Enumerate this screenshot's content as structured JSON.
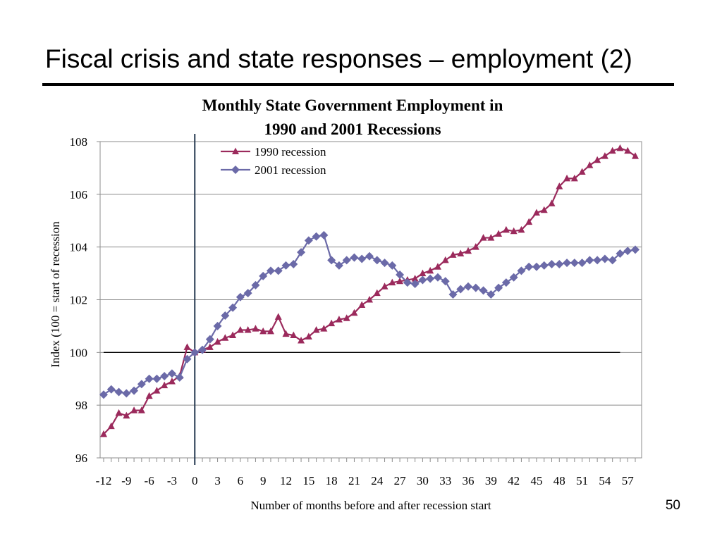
{
  "slide": {
    "title": "Fiscal crisis and state responses – employment (2)",
    "number": "50"
  },
  "chart_data": {
    "type": "line",
    "title": "Monthly State Government Employment in 1990 and 2001 Recessions",
    "title_lines": [
      "Monthly State Government Employment in",
      "1990 and 2001 Recessions"
    ],
    "xlabel": "Number of months before and after recession start",
    "ylabel": "Index (100 = start of recession",
    "xlim": [
      -12,
      58
    ],
    "ylim": [
      96,
      108
    ],
    "y_ticks": [
      96,
      98,
      100,
      102,
      104,
      106,
      108
    ],
    "x_ticks": [
      -12,
      -9,
      -6,
      -3,
      0,
      3,
      6,
      9,
      12,
      15,
      18,
      21,
      24,
      27,
      30,
      33,
      36,
      39,
      42,
      45,
      48,
      51,
      54,
      57
    ],
    "grid": "horizontal",
    "legend_position": "top-left",
    "reference_lines": {
      "vertical_x": 0,
      "horizontal_y": 100
    },
    "series": [
      {
        "name": "1990 recession",
        "color": "#9b2a5c",
        "marker": "triangle",
        "x_start": -12,
        "values": [
          96.9,
          97.2,
          97.7,
          97.6,
          97.8,
          97.8,
          98.35,
          98.55,
          98.75,
          98.9,
          99.1,
          100.2,
          100.0,
          100.1,
          100.2,
          100.4,
          100.55,
          100.65,
          100.85,
          100.85,
          100.9,
          100.8,
          100.8,
          101.35,
          100.7,
          100.65,
          100.45,
          100.6,
          100.85,
          100.9,
          101.1,
          101.25,
          101.3,
          101.5,
          101.8,
          102.0,
          102.25,
          102.5,
          102.65,
          102.7,
          102.75,
          102.8,
          103.0,
          103.1,
          103.25,
          103.5,
          103.7,
          103.75,
          103.85,
          104.0,
          104.35,
          104.35,
          104.5,
          104.65,
          104.6,
          104.65,
          104.95,
          105.3,
          105.4,
          105.65,
          106.3,
          106.6,
          106.6,
          106.85,
          107.1,
          107.3,
          107.45,
          107.65,
          107.75,
          107.65,
          107.45
        ]
      },
      {
        "name": "2001 recession",
        "color": "#6b6aa8",
        "marker": "diamond",
        "x_start": -12,
        "values": [
          98.4,
          98.6,
          98.5,
          98.45,
          98.55,
          98.8,
          99.0,
          99.0,
          99.1,
          99.2,
          99.05,
          99.75,
          100.0,
          100.1,
          100.5,
          101.0,
          101.4,
          101.7,
          102.1,
          102.25,
          102.55,
          102.9,
          103.1,
          103.1,
          103.3,
          103.35,
          103.8,
          104.25,
          104.4,
          104.45,
          103.5,
          103.3,
          103.5,
          103.6,
          103.55,
          103.65,
          103.5,
          103.4,
          103.3,
          102.95,
          102.65,
          102.6,
          102.75,
          102.8,
          102.85,
          102.7,
          102.2,
          102.4,
          102.5,
          102.45,
          102.35,
          102.2,
          102.45,
          102.65,
          102.85,
          103.1,
          103.25,
          103.25,
          103.3,
          103.35,
          103.35,
          103.4,
          103.4,
          103.4,
          103.5,
          103.5,
          103.55,
          103.5,
          103.75,
          103.85,
          103.9
        ]
      }
    ]
  }
}
